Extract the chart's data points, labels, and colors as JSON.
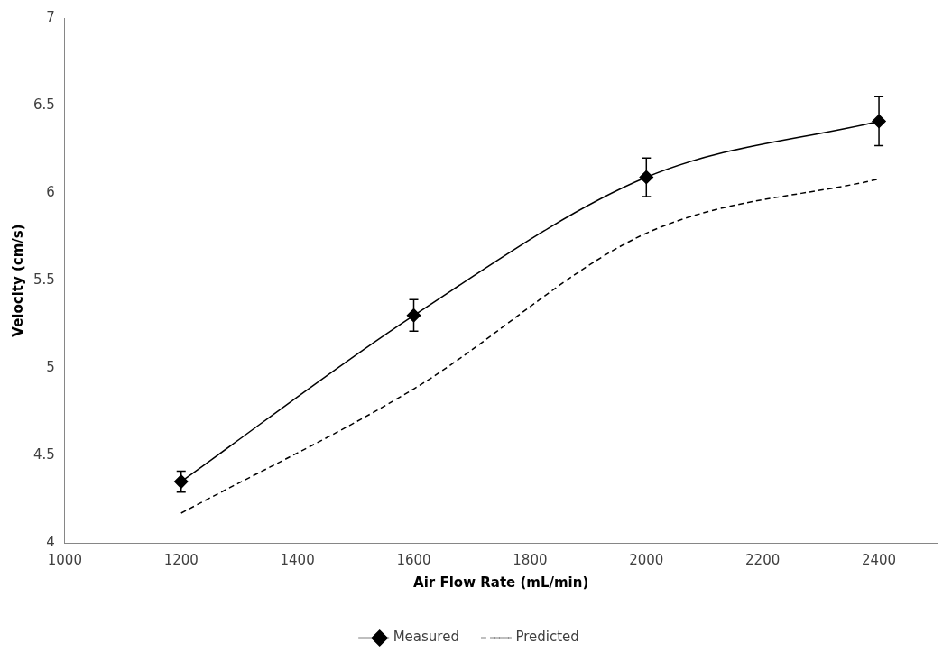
{
  "chart_data": {
    "type": "line",
    "xlabel": "Air Flow Rate (mL/min)",
    "ylabel": "Velocity (cm/s)",
    "x": [
      1200,
      1600,
      2000,
      2400
    ],
    "series": [
      {
        "name": "Measured",
        "color": "#000000",
        "values": [
          4.35,
          5.3,
          6.09,
          6.41
        ],
        "errors": [
          0.06,
          0.09,
          0.11,
          0.14
        ],
        "marker": "diamond",
        "line_style": "solid"
      },
      {
        "name": "Predicted",
        "color": "#000000",
        "values": [
          4.17,
          4.88,
          5.77,
          6.08
        ],
        "marker": "none",
        "line_style": "dashed"
      }
    ],
    "xlim": [
      1000,
      2500
    ],
    "xticks": [
      1000,
      1200,
      1400,
      1600,
      1800,
      2000,
      2200,
      2400
    ],
    "ylim": [
      4,
      7
    ],
    "yticks": [
      4,
      4.5,
      5,
      5.5,
      6,
      6.5,
      7
    ],
    "grid": false,
    "legend": "bottom"
  }
}
